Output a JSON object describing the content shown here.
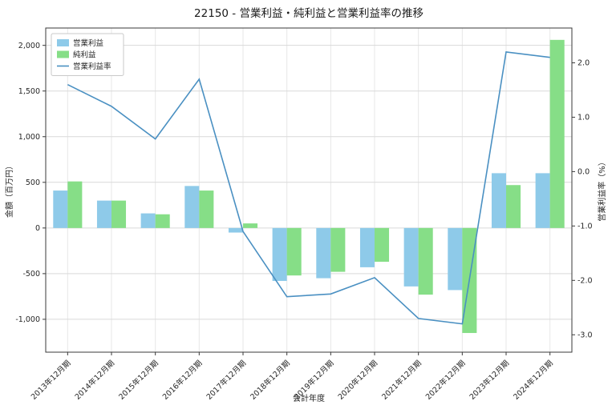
{
  "chart_data": {
    "type": "bar",
    "title": "22150 - 営業利益・純利益と営業利益率の推移",
    "xlabel": "会計年度",
    "ylabel_left": "金額（百万円）",
    "ylabel_right": "営業利益率（%）",
    "categories": [
      "2013年12月期",
      "2014年12月期",
      "2015年12月期",
      "2016年12月期",
      "2017年12月期",
      "2018年12月期",
      "2019年12月期",
      "2020年12月期",
      "2021年12月期",
      "2022年12月期",
      "2023年12月期",
      "2024年12月期"
    ],
    "bar_series": [
      {
        "name": "営業利益",
        "color": "#8ecae9",
        "values": [
          410,
          300,
          160,
          460,
          -50,
          -580,
          -550,
          -430,
          -640,
          -680,
          600,
          600
        ]
      },
      {
        "name": "純利益",
        "color": "#86de87",
        "values": [
          510,
          300,
          150,
          410,
          50,
          -520,
          -480,
          -370,
          -730,
          -1150,
          470,
          2060
        ]
      }
    ],
    "line_series": {
      "name": "営業利益率",
      "color": "#4a90c2",
      "axis": "right",
      "values": [
        1.6,
        1.2,
        0.6,
        1.7,
        -1.1,
        -2.3,
        -2.25,
        -1.95,
        -2.7,
        -2.8,
        2.2,
        2.1
      ]
    },
    "left_axis": {
      "min": -1360,
      "max": 2190,
      "ticks": [
        -1000,
        -500,
        0,
        500,
        1000,
        1500,
        2000
      ],
      "tick_labels": [
        "-1,000",
        "-500",
        "0",
        "500",
        "1,000",
        "1,500",
        "2,000"
      ]
    },
    "right_axis": {
      "min": -3.32,
      "max": 2.64,
      "ticks": [
        -3.0,
        -2.0,
        -1.0,
        0.0,
        1.0,
        2.0
      ],
      "tick_labels": [
        "-3.0",
        "-2.0",
        "-1.0",
        "0.0",
        "1.0",
        "2.0"
      ]
    },
    "grid": true,
    "legend_position": "top-left"
  }
}
